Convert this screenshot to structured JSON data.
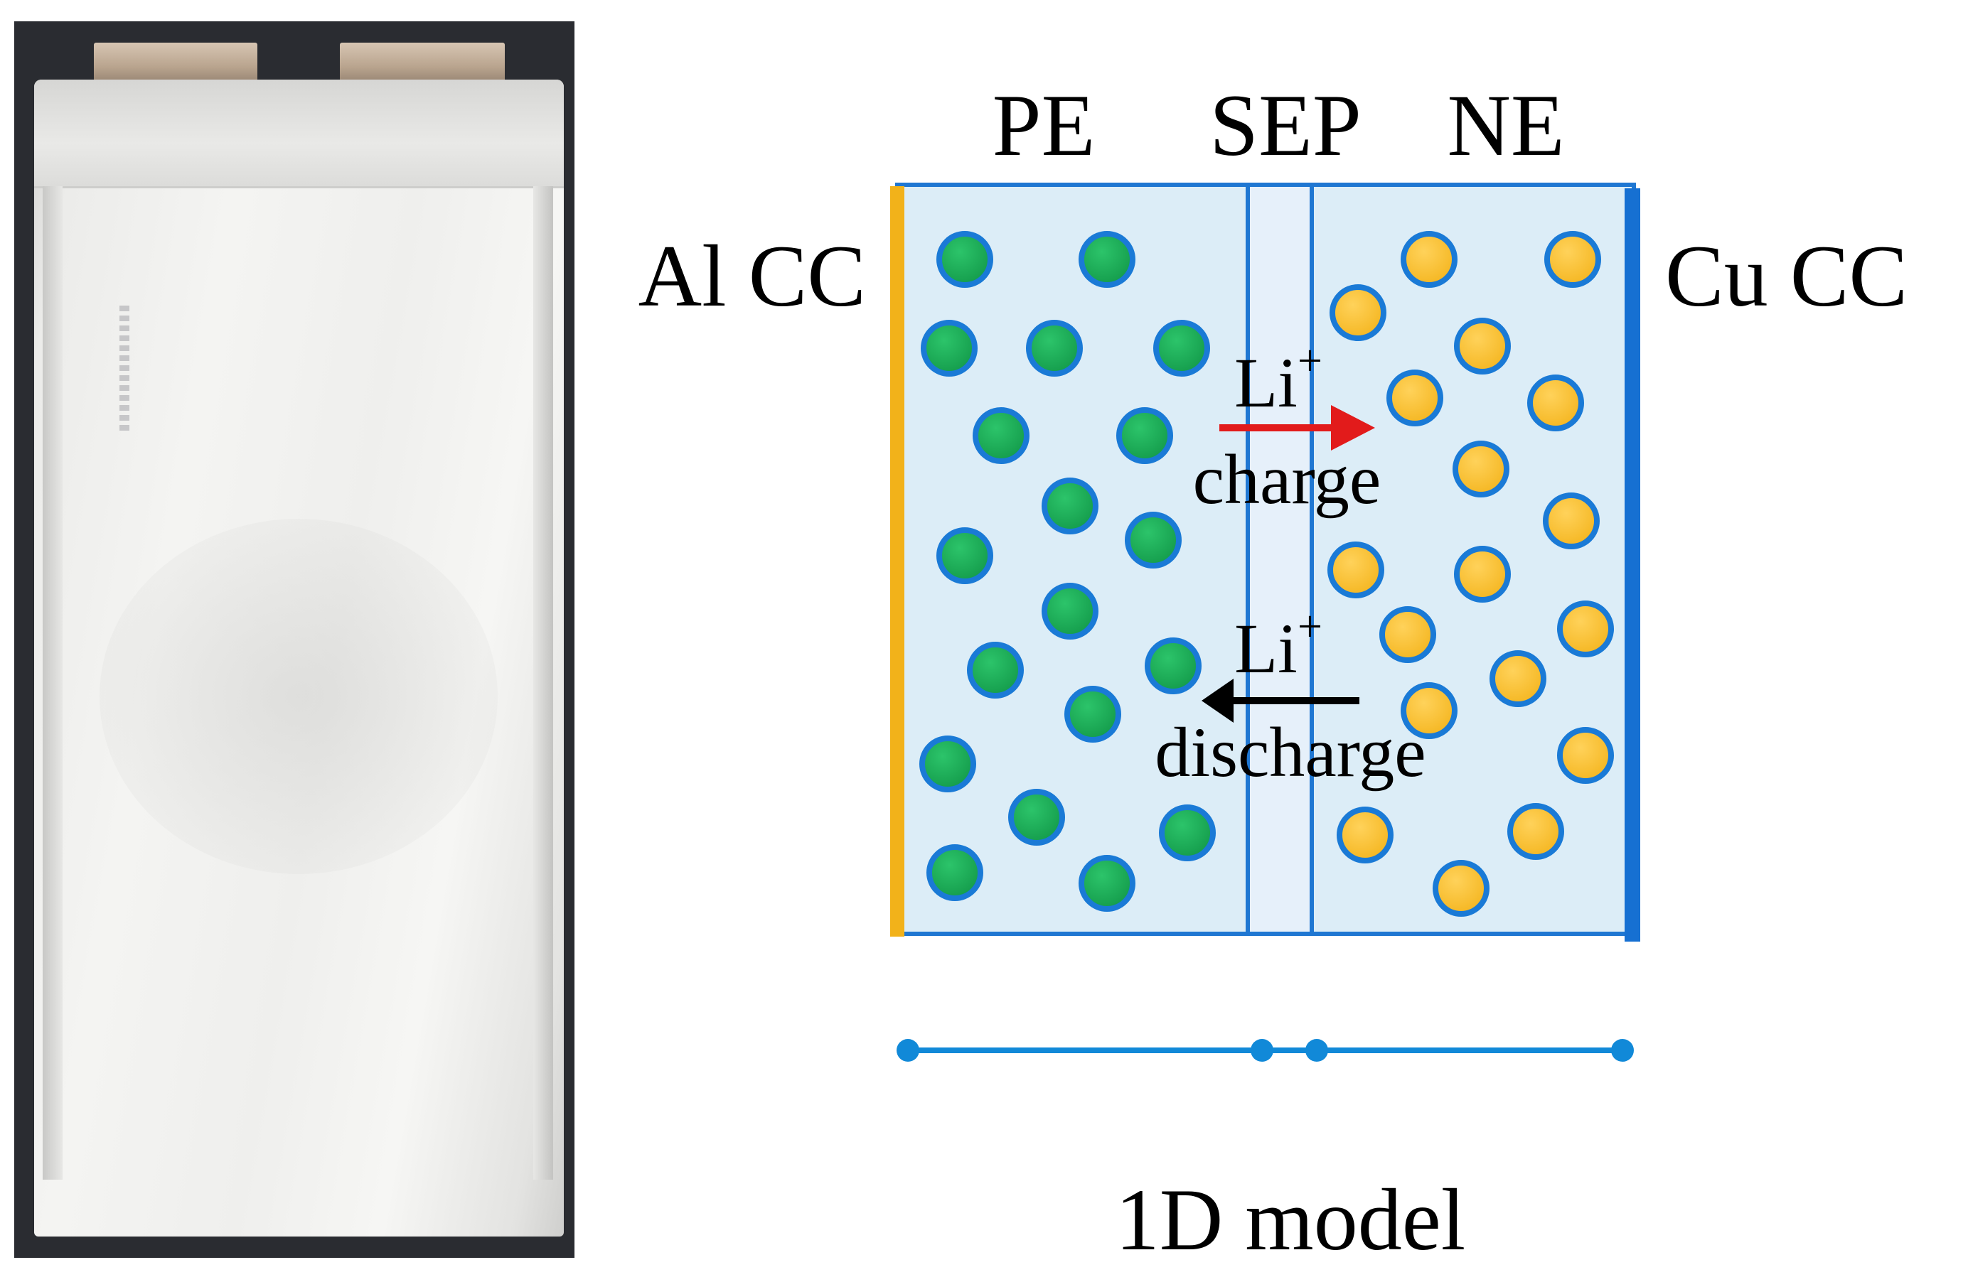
{
  "photo": {
    "subject": "pouch-cell"
  },
  "diagram": {
    "region_labels": {
      "positive_electrode": "PE",
      "separator": "SEP",
      "negative_electrode": "NE"
    },
    "collector_labels": {
      "left": "Al CC",
      "right": "Cu CC"
    },
    "ion": {
      "symbol": "Li",
      "charge_sign": "+"
    },
    "arrows": {
      "charge_label": "charge",
      "discharge_label": "discharge"
    },
    "model_label": "1D model",
    "colors": {
      "electrolyte": "#dcedf7",
      "separator": "#e6f0fa",
      "frame": "#1f77d2",
      "al_collector": "#f2b21a",
      "cu_collector": "#1670d2",
      "pe_particle": "#139a4a",
      "ne_particle": "#f4b51f",
      "charge_arrow": "#e21b1b",
      "discharge_arrow": "#000000",
      "model_line": "#1189d8"
    }
  }
}
